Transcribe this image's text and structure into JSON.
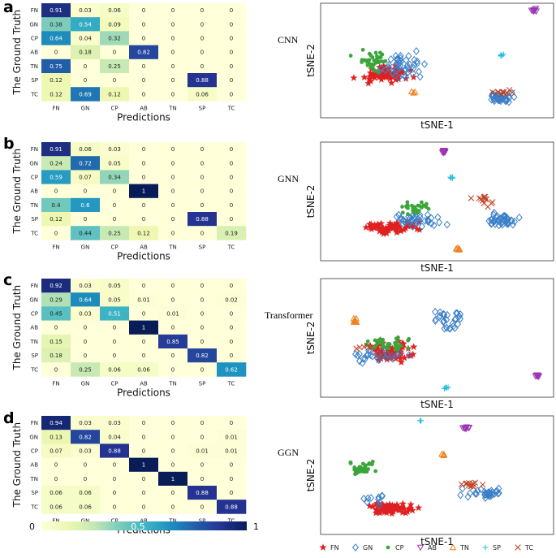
{
  "chart_data": [
    {
      "type": "heatmap",
      "panel": "a",
      "model": "CNN",
      "xlabel": "Predictions",
      "ylabel": "The Ground Truth",
      "classes": [
        "FN",
        "GN",
        "CP",
        "AB",
        "TN",
        "SP",
        "TC"
      ],
      "values": [
        [
          0.91,
          0.03,
          0.06,
          0,
          0,
          0,
          0
        ],
        [
          0.38,
          0.54,
          0.09,
          0,
          0,
          0,
          0
        ],
        [
          0.64,
          0.04,
          0.32,
          0,
          0,
          0,
          0
        ],
        [
          0,
          0.18,
          0,
          0.82,
          0,
          0,
          0
        ],
        [
          0.75,
          0,
          0.25,
          0,
          0,
          0,
          0
        ],
        [
          0.12,
          0,
          0,
          0,
          0,
          0.88,
          0
        ],
        [
          0.12,
          0.69,
          0.12,
          0,
          0,
          0.06,
          0
        ]
      ]
    },
    {
      "type": "heatmap",
      "panel": "b",
      "model": "GNN",
      "xlabel": "Predictions",
      "ylabel": "The Ground Truth",
      "classes": [
        "FN",
        "GN",
        "CP",
        "AB",
        "TN",
        "SP",
        "TC"
      ],
      "values": [
        [
          0.91,
          0.06,
          0.03,
          0,
          0,
          0,
          0
        ],
        [
          0.24,
          0.72,
          0.05,
          0,
          0,
          0,
          0
        ],
        [
          0.59,
          0.07,
          0.34,
          0,
          0,
          0,
          0
        ],
        [
          0,
          0,
          0,
          1,
          0,
          0,
          0
        ],
        [
          0.4,
          0.6,
          0,
          0,
          0,
          0,
          0
        ],
        [
          0.12,
          0,
          0,
          0,
          0,
          0.88,
          0
        ],
        [
          0,
          0.44,
          0.25,
          0.12,
          0,
          0,
          0.19
        ]
      ]
    },
    {
      "type": "heatmap",
      "panel": "c",
      "model": "Transformer",
      "xlabel": "Predictions",
      "ylabel": "The Ground Truth",
      "classes": [
        "FN",
        "GN",
        "CP",
        "AB",
        "TN",
        "SP",
        "TC"
      ],
      "values": [
        [
          0.92,
          0.03,
          0.05,
          0,
          0,
          0,
          0
        ],
        [
          0.29,
          0.64,
          0.05,
          0.01,
          0,
          0,
          0.02
        ],
        [
          0.45,
          0.03,
          0.51,
          0,
          0.01,
          0,
          0
        ],
        [
          0,
          0,
          0,
          1,
          0,
          0,
          0
        ],
        [
          0.15,
          0,
          0,
          0,
          0.85,
          0,
          0
        ],
        [
          0.18,
          0,
          0,
          0,
          0,
          0.82,
          0
        ],
        [
          0,
          0.25,
          0.06,
          0.06,
          0,
          0,
          0.62
        ]
      ]
    },
    {
      "type": "heatmap",
      "panel": "d",
      "model": "GGN",
      "xlabel": "Predictions",
      "ylabel": "The Ground Truth",
      "classes": [
        "FN",
        "GN",
        "CP",
        "AB",
        "TN",
        "SP",
        "TC"
      ],
      "values": [
        [
          0.94,
          0.03,
          0.03,
          0,
          0,
          0,
          0
        ],
        [
          0.13,
          0.82,
          0.04,
          0,
          0,
          0,
          0.01
        ],
        [
          0.07,
          0.03,
          0.88,
          0,
          0,
          0.01,
          0.01
        ],
        [
          0,
          0,
          0,
          1,
          0,
          0,
          0
        ],
        [
          0,
          0,
          0,
          0,
          1,
          0,
          0
        ],
        [
          0.06,
          0.06,
          0,
          0,
          0,
          0.88,
          0
        ],
        [
          0.06,
          0.06,
          0,
          0,
          0,
          0,
          0.88
        ]
      ]
    },
    {
      "type": "scatter",
      "panels": [
        "a",
        "b",
        "c",
        "d"
      ],
      "xlabel": "tSNE-1",
      "ylabel": "tSNE-2",
      "series_legend": [
        {
          "name": "FN",
          "marker": "star",
          "color": "#e02020"
        },
        {
          "name": "GN",
          "marker": "diamond",
          "color": "#3a7fc8"
        },
        {
          "name": "CP",
          "marker": "dot",
          "color": "#3aa63a"
        },
        {
          "name": "AB",
          "marker": "triangle-down",
          "color": "#9b35b5"
        },
        {
          "name": "TN",
          "marker": "triangle-up",
          "color": "#f08020"
        },
        {
          "name": "SP",
          "marker": "plus",
          "color": "#20c0d8"
        },
        {
          "name": "TC",
          "marker": "x",
          "color": "#c04020"
        }
      ]
    }
  ],
  "colorbar": {
    "min_label": "0",
    "mid_label": "0.5",
    "max_label": "1"
  },
  "colors": {
    "cmap": [
      "#ffffd9",
      "#edf8b1",
      "#c7e9b4",
      "#7fcdbb",
      "#41b6c4",
      "#1d91c0",
      "#225ea8",
      "#253494",
      "#081d58"
    ]
  },
  "panel_letters": [
    "a",
    "b",
    "c",
    "d"
  ]
}
